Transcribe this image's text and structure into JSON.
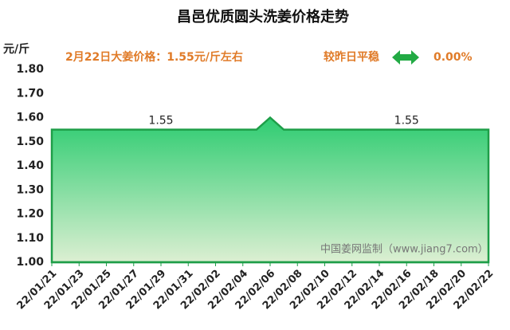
{
  "chart_data": {
    "type": "area",
    "title": "昌邑优质圆头洗姜价格走势",
    "y_unit": "元/斤",
    "annotation": "2月22日大姜价格：1.55元/斤左右",
    "change_text": "较昨日平稳",
    "change_value": "0.00%",
    "watermark": "中国姜网监制（www.jiang7.com）",
    "categories": [
      "22/01/21",
      null,
      "22/01/23",
      null,
      "22/01/25",
      null,
      "22/01/27",
      null,
      "22/01/29",
      null,
      "22/01/31",
      null,
      "22/02/02",
      null,
      "22/02/04",
      null,
      "22/02/06",
      null,
      "22/02/08",
      null,
      "22/02/10",
      null,
      "22/02/12",
      null,
      "22/02/14",
      null,
      "22/02/16",
      null,
      "22/02/18",
      null,
      "22/02/20",
      null,
      "22/02/22"
    ],
    "values": [
      1.55,
      1.55,
      1.55,
      1.55,
      1.55,
      1.55,
      1.55,
      1.55,
      1.55,
      1.55,
      1.55,
      1.55,
      1.55,
      1.55,
      1.55,
      1.55,
      1.6,
      1.55,
      1.55,
      1.55,
      1.55,
      1.55,
      1.55,
      1.55,
      1.55,
      1.55,
      1.55,
      1.55,
      1.55,
      1.55,
      1.55,
      1.55,
      1.55
    ],
    "labeled_indices": [
      8,
      26
    ],
    "color": "#2ecc71",
    "ylim": [
      1.0,
      1.8
    ],
    "yticks": [
      {
        "value": 1.0,
        "label": "1.00"
      },
      {
        "value": 1.1,
        "label": "1.10"
      },
      {
        "value": 1.2,
        "label": "1.20"
      },
      {
        "value": 1.3,
        "label": "1.30"
      },
      {
        "value": 1.4,
        "label": "1.40"
      },
      {
        "value": 1.5,
        "label": "1.50"
      },
      {
        "value": 1.6,
        "label": "1.60"
      },
      {
        "value": 1.7,
        "label": "1.70"
      },
      {
        "value": 1.8,
        "label": "1.80"
      }
    ],
    "grid": false
  }
}
